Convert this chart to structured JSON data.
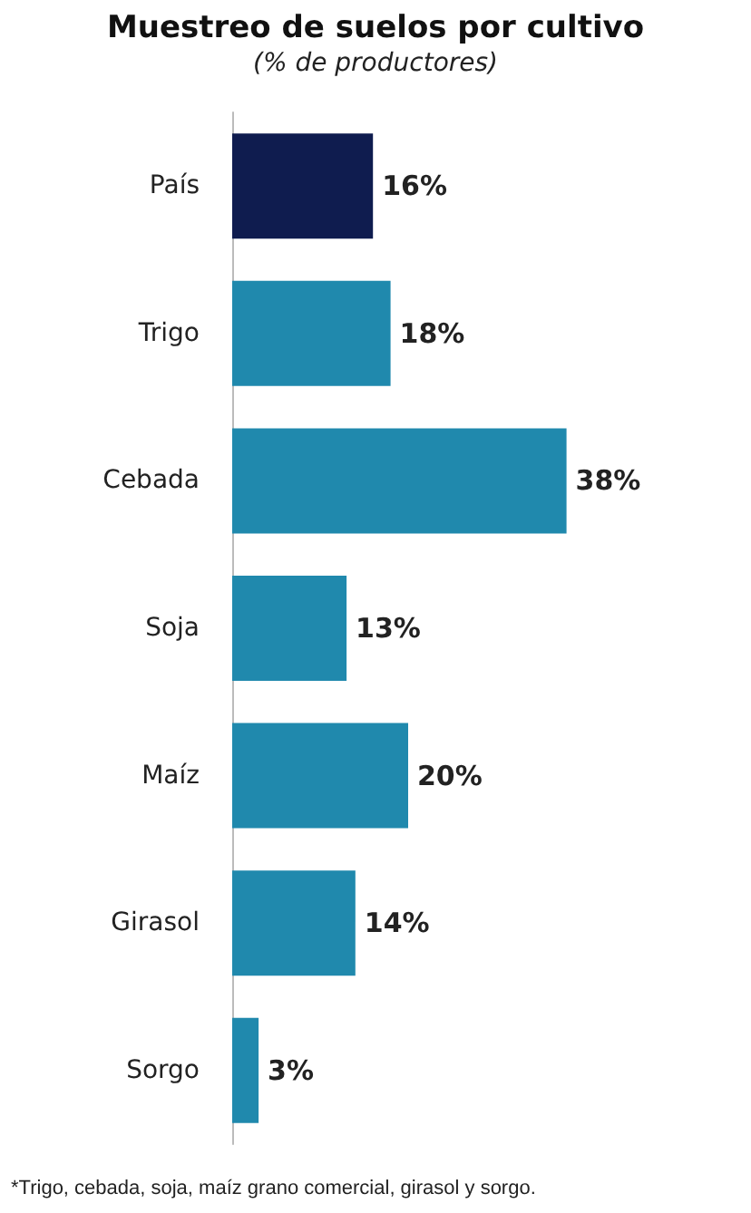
{
  "chart_data": {
    "type": "bar",
    "orientation": "horizontal",
    "title": "Muestreo de suelos por cultivo",
    "subtitle": "(% de productores)",
    "categories": [
      "País",
      "Trigo",
      "Cebada",
      "Soja",
      "Maíz",
      "Girasol",
      "Sorgo"
    ],
    "values": [
      16,
      18,
      38,
      13,
      20,
      14,
      3
    ],
    "colors": [
      "#0f1c4f",
      "#2089ad",
      "#2089ad",
      "#2089ad",
      "#2089ad",
      "#2089ad",
      "#2089ad"
    ],
    "value_labels": [
      "16%",
      "18%",
      "38%",
      "13%",
      "20%",
      "14%",
      "3%"
    ],
    "annotations": [
      "*Trigo, cebada, soja, maíz grano comercial, girasol y sorgo."
    ]
  }
}
